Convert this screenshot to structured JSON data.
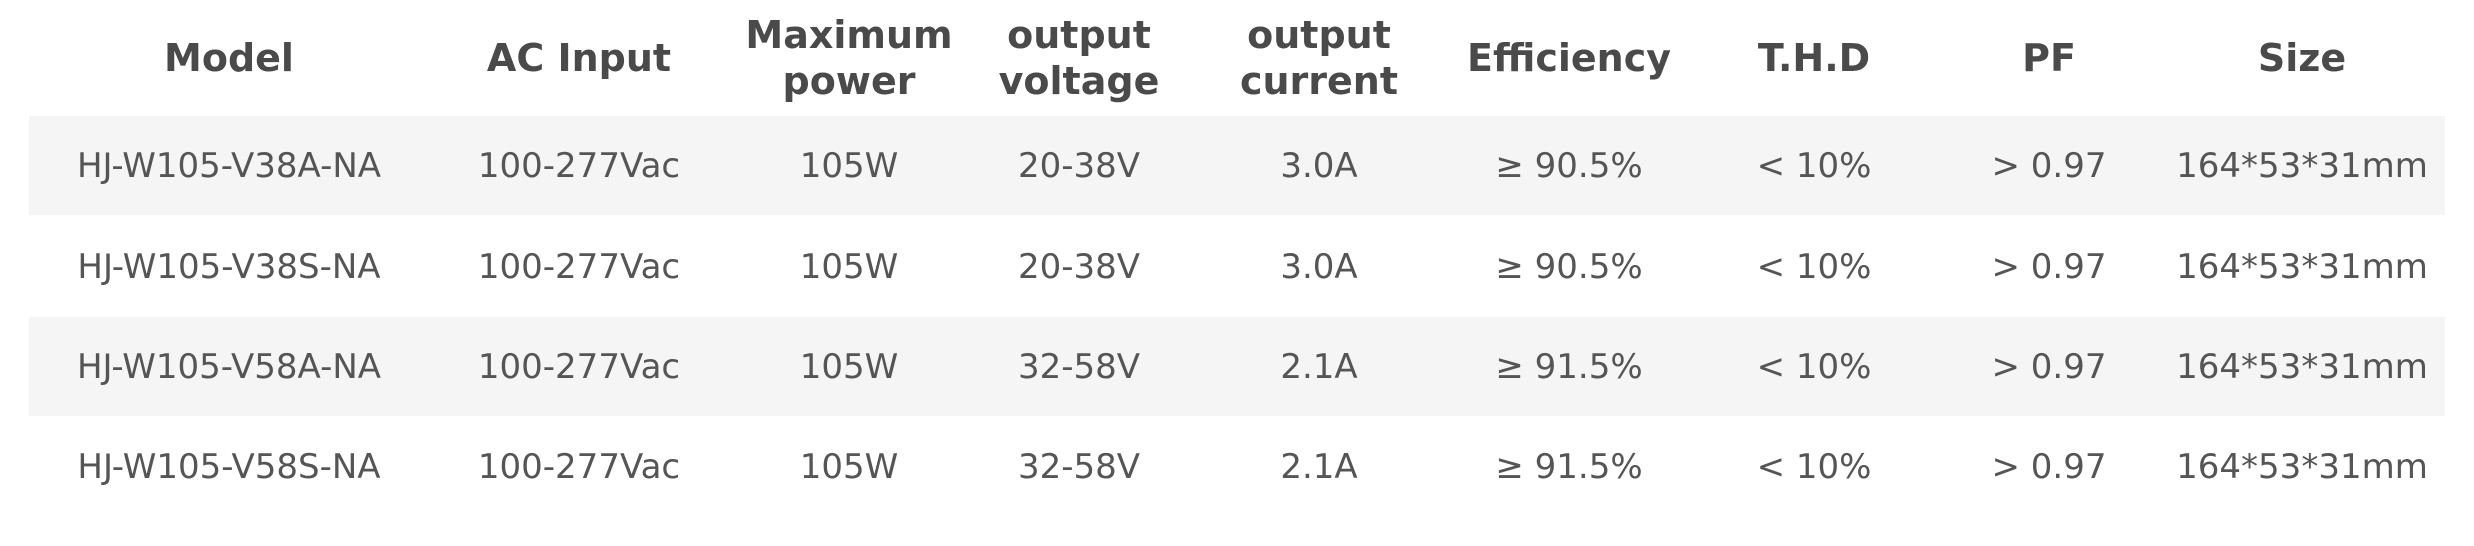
{
  "table": {
    "headers": [
      "Model",
      "AC Input",
      "Maximum\npower",
      "output\nvoltage",
      "output\ncurrent",
      "Efficiency",
      "T.H.D",
      "PF",
      "Size"
    ],
    "rows": [
      [
        "HJ-W105-V38A-NA",
        "100-277Vac",
        "105W",
        "20-38V",
        "3.0A",
        "≥ 90.5%",
        "< 10%",
        "> 0.97",
        "164*53*31mm"
      ],
      [
        "HJ-W105-V38S-NA",
        "100-277Vac",
        "105W",
        "20-38V",
        "3.0A",
        "≥ 90.5%",
        "< 10%",
        "> 0.97",
        "164*53*31mm"
      ],
      [
        "HJ-W105-V58A-NA",
        "100-277Vac",
        "105W",
        "32-58V",
        "2.1A",
        "≥ 91.5%",
        "< 10%",
        "> 0.97",
        "164*53*31mm"
      ],
      [
        "HJ-W105-V58S-NA",
        "100-277Vac",
        "105W",
        "32-58V",
        "2.1A",
        "≥ 91.5%",
        "< 10%",
        "> 0.97",
        "164*53*31mm"
      ]
    ]
  },
  "colors": {
    "shaded_row": "#f5f5f5",
    "text": "#555555",
    "header_text": "#4a4a4a"
  }
}
